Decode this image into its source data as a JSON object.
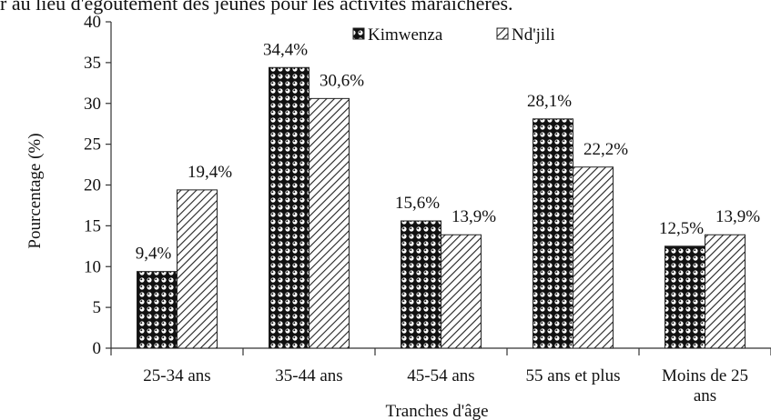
{
  "header_text": "r au lieu d'égoutement des jeunes pour les activités maraîchères.",
  "chart_data": {
    "type": "bar",
    "categories": [
      "25-34 ans",
      "35-44 ans",
      "45-54 ans",
      "55 ans et plus",
      "Moins de 25 ans"
    ],
    "series": [
      {
        "name": "Kimwenza",
        "values": [
          9.4,
          34.4,
          15.6,
          28.1,
          12.5
        ],
        "labels": [
          "9,4%",
          "34,4%",
          "15,6%",
          "28,1%",
          "12,5%"
        ]
      },
      {
        "name": "Nd'jili",
        "values": [
          19.4,
          30.6,
          13.9,
          22.2,
          13.9
        ],
        "labels": [
          "19,4%",
          "30,6%",
          "13,9%",
          "22,2%",
          "13,9%"
        ]
      }
    ],
    "xlabel": "Tranches d'âge",
    "ylabel": "Pourcentage (%)",
    "ylim": [
      0,
      40
    ],
    "yticks": [
      0,
      5,
      10,
      15,
      20,
      25,
      30,
      35,
      40
    ],
    "grid": false,
    "legend": "top"
  }
}
